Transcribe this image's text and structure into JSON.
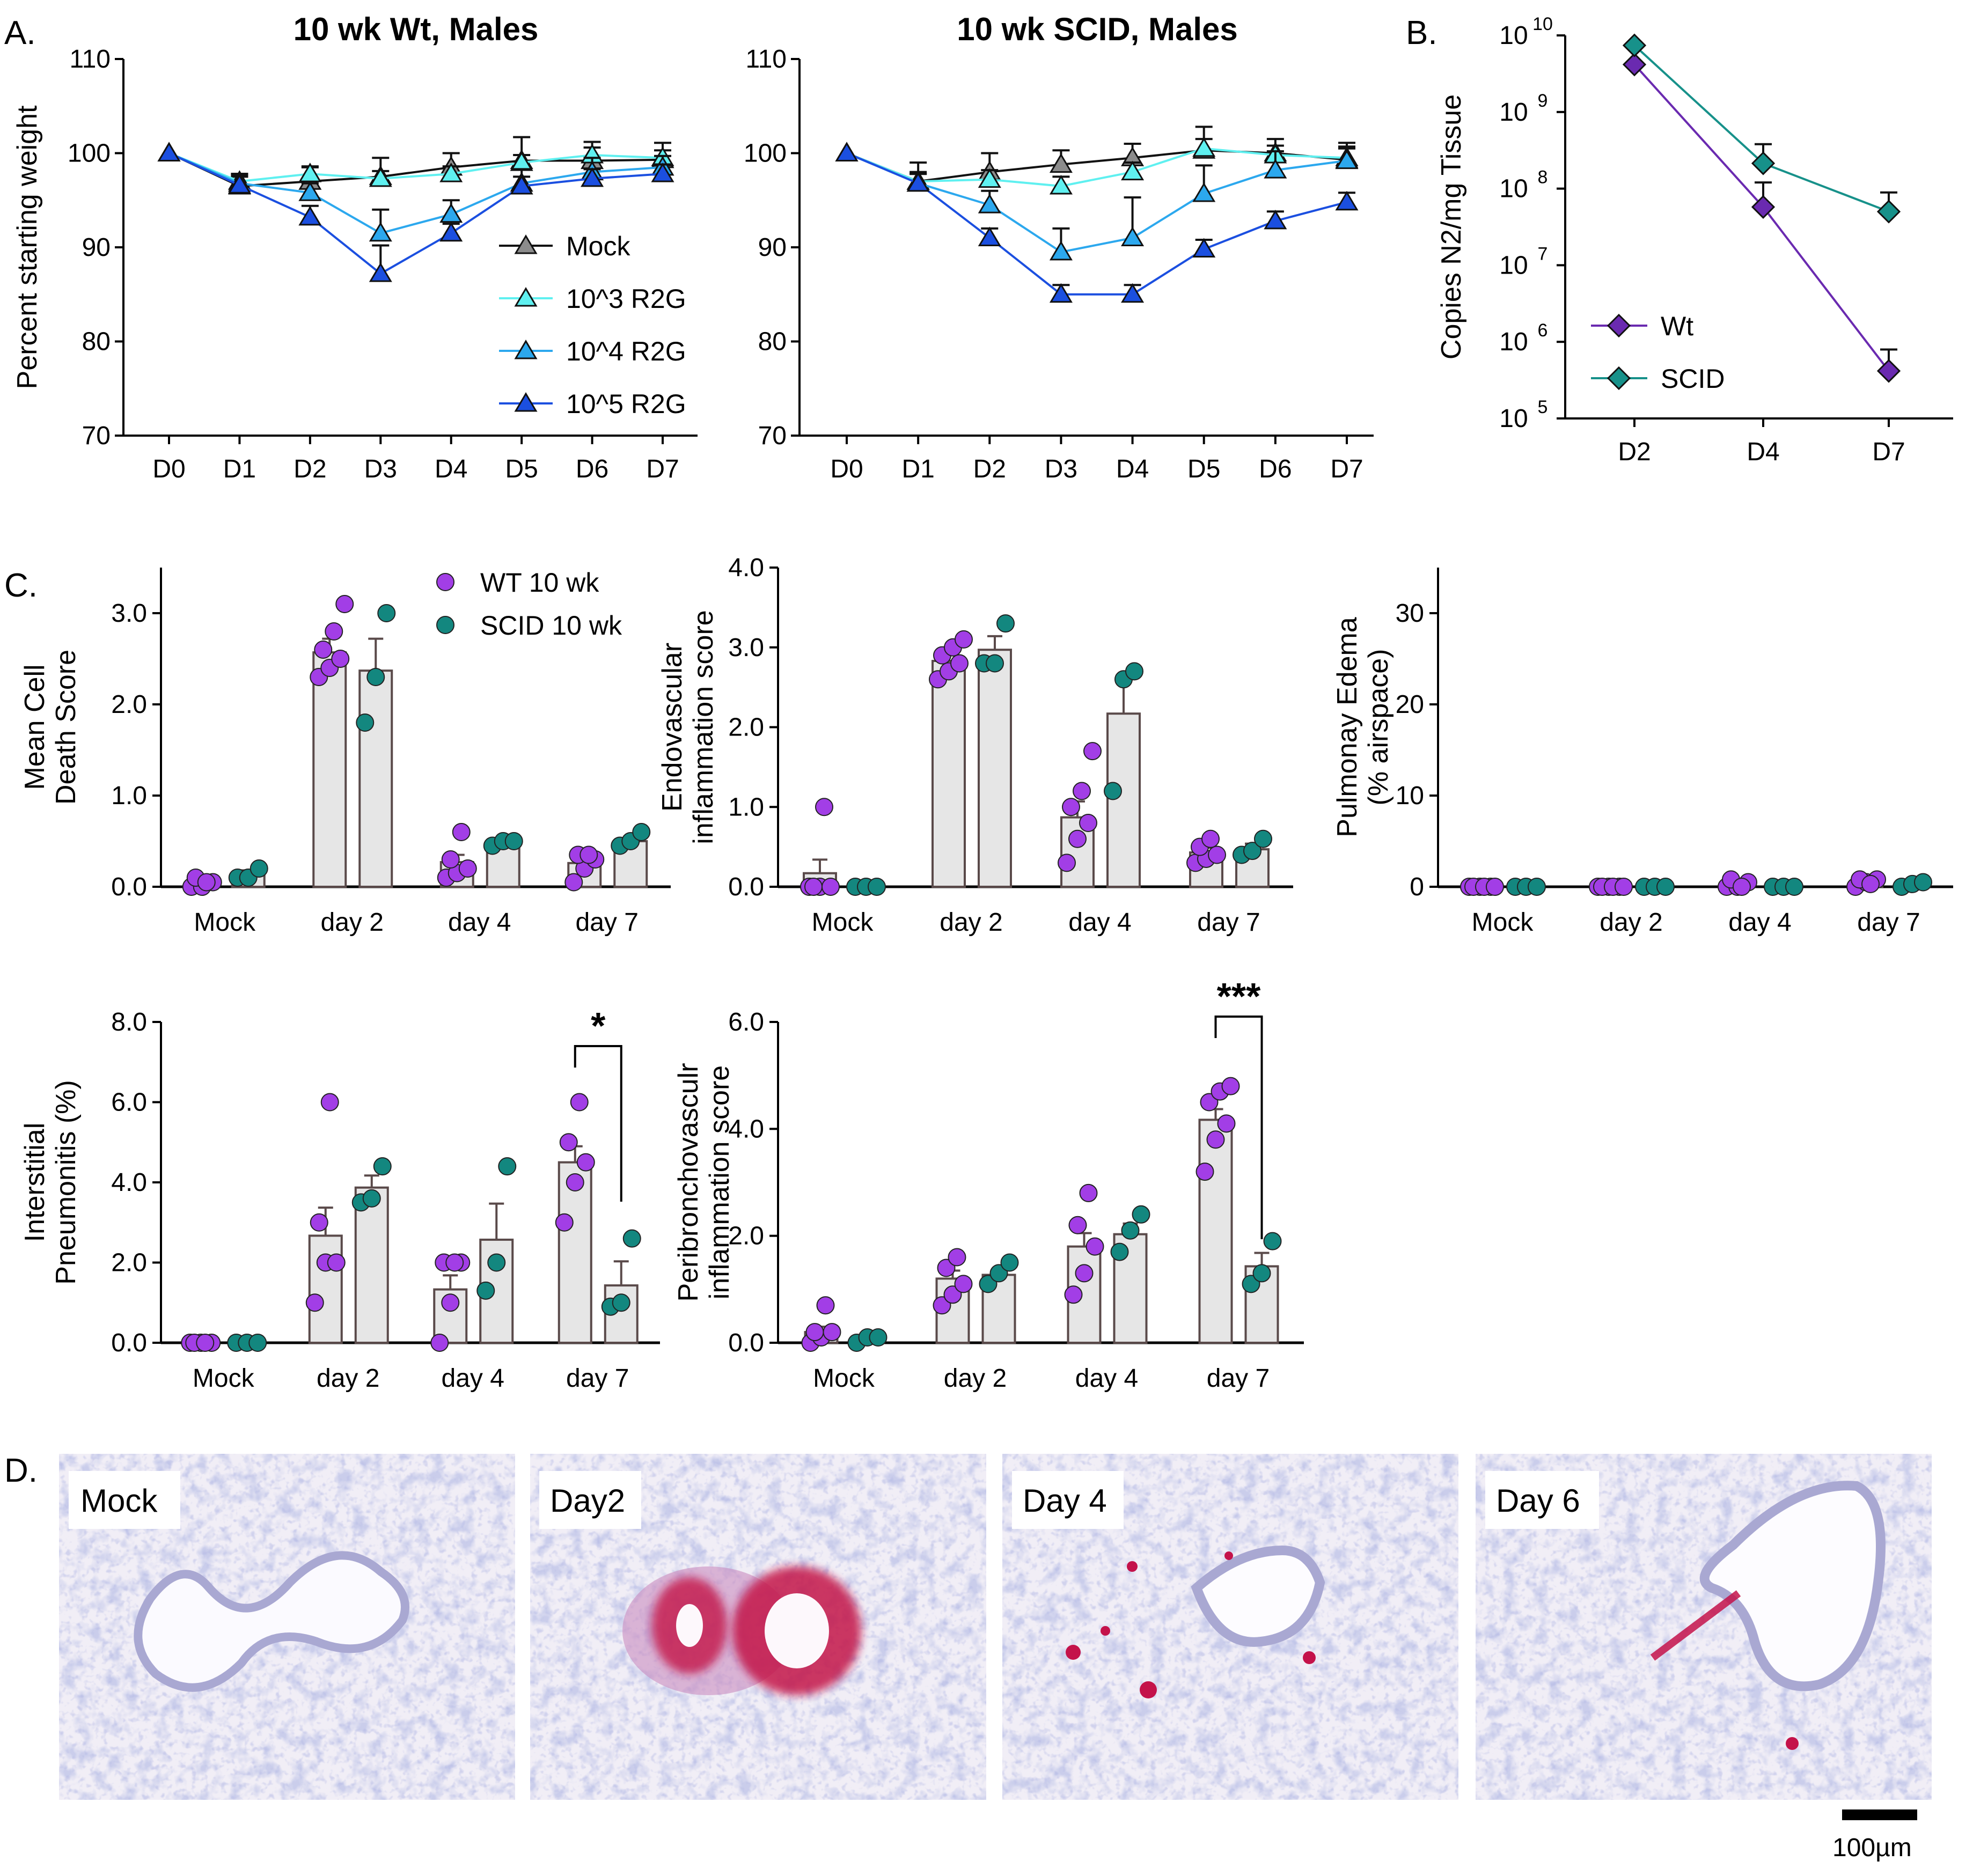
{
  "panel_letters": {
    "a": "A.",
    "b": "B.",
    "c": "C.",
    "d": "D."
  },
  "colors": {
    "mock": "#8c8c8c",
    "r2g_3": "#5ff0f0",
    "r2g_4": "#2ca8ee",
    "r2g_5": "#1b4fe0",
    "wt": "#6a2ab0",
    "scid": "#17918a",
    "wt_dot": "#a23ee6",
    "scid_dot": "#13877f",
    "bar_fill": "#e6e6e6",
    "bar_stroke": "#5a4a4a"
  },
  "chart_data": [
    {
      "id": "a1",
      "type": "line",
      "title": "10 wk Wt, Males",
      "ylabel": "Percent starting weight",
      "xlabel": "",
      "categories": [
        "D0",
        "D1",
        "D2",
        "D3",
        "D4",
        "D5",
        "D6",
        "D7"
      ],
      "ylim": [
        70,
        110
      ],
      "yticks": [
        "70",
        "80",
        "90",
        "100",
        "110"
      ],
      "legend": [
        "Mock",
        "10^3 R2G",
        "10^4 R2G",
        "10^5 R2G"
      ],
      "series": [
        {
          "name": "Mock",
          "values": [
            100,
            96.5,
            97,
            97.5,
            98.5,
            99.2,
            99.2,
            99.3
          ],
          "errors": [
            0,
            1,
            1.5,
            2,
            1.5,
            2.5,
            2,
            1.8
          ]
        },
        {
          "name": "10^3 R2G",
          "values": [
            100,
            97,
            97.8,
            97.3,
            97.8,
            99,
            99.8,
            99.5
          ],
          "errors": [
            0,
            0.8,
            0.8,
            0.8,
            0.8,
            0.8,
            0.8,
            0.8
          ]
        },
        {
          "name": "10^4 R2G",
          "values": [
            100,
            96.8,
            95.8,
            91.5,
            93.5,
            96.8,
            98,
            98.5
          ],
          "errors": [
            0,
            1,
            1,
            2.5,
            1.5,
            1.5,
            1.5,
            1.2
          ]
        },
        {
          "name": "10^5 R2G",
          "values": [
            100,
            96.6,
            93.2,
            87.2,
            91.5,
            96.5,
            97.3,
            97.8
          ],
          "errors": [
            0,
            1,
            1.2,
            3,
            1,
            1,
            1,
            1
          ]
        }
      ]
    },
    {
      "id": "a2",
      "type": "line",
      "title": "10 wk SCID, Males",
      "ylabel": "",
      "xlabel": "",
      "categories": [
        "D0",
        "D1",
        "D2",
        "D3",
        "D4",
        "D5",
        "D6",
        "D7"
      ],
      "ylim": [
        70,
        110
      ],
      "yticks": [
        "70",
        "80",
        "90",
        "100",
        "110"
      ],
      "series": [
        {
          "name": "Mock",
          "values": [
            100,
            97,
            98,
            98.8,
            99.5,
            100.3,
            100,
            99.3
          ],
          "errors": [
            0,
            2,
            2,
            1.5,
            1.5,
            2.5,
            1.5,
            1.8
          ]
        },
        {
          "name": "10^3 R2G",
          "values": [
            100,
            97,
            97.2,
            96.5,
            98,
            100.5,
            99.8,
            99.5
          ],
          "errors": [
            0,
            1,
            1,
            1,
            1,
            1,
            1,
            1
          ]
        },
        {
          "name": "10^4 R2G",
          "values": [
            100,
            96.8,
            94.5,
            89.5,
            91,
            95.7,
            98.2,
            99.2
          ],
          "errors": [
            0,
            1,
            1.5,
            2.5,
            4.3,
            3,
            2,
            1.5
          ]
        },
        {
          "name": "10^5 R2G",
          "values": [
            100,
            96.8,
            91,
            85,
            85,
            89.8,
            92.8,
            94.8
          ],
          "errors": [
            0,
            1,
            1,
            1,
            1,
            1,
            1,
            1
          ]
        }
      ]
    },
    {
      "id": "b",
      "type": "line",
      "title": "",
      "ylabel": "Copies N2/mg Tissue",
      "xlabel": "",
      "categories": [
        "D2",
        "D4",
        "D7"
      ],
      "yscale": "log",
      "ylim_exp": [
        5,
        10
      ],
      "ytick_exps": [
        "5",
        "6",
        "7",
        "8",
        "9",
        "10"
      ],
      "legend": [
        "Wt",
        "SCID"
      ],
      "series": [
        {
          "name": "Wt",
          "log10_values": [
            9.62,
            7.76,
            5.62
          ],
          "log10_error_tops": [
            9.62,
            8.08,
            5.9
          ]
        },
        {
          "name": "SCID",
          "log10_values": [
            9.87,
            8.33,
            7.7
          ],
          "log10_error_tops": [
            9.87,
            8.58,
            7.95
          ]
        }
      ]
    },
    {
      "id": "c1",
      "type": "bar",
      "ylabel": "Mean Cell Death Score",
      "categories": [
        "Mock",
        "day 2",
        "day 4",
        "day 7"
      ],
      "ylim": [
        0,
        3.5
      ],
      "yticks": [
        "0.0",
        "1.0",
        "2.0",
        "3.0"
      ],
      "legend": [
        "WT 10 wk",
        "SCID 10 wk"
      ],
      "series": [
        {
          "name": "WT 10 wk",
          "means": [
            0.04,
            2.57,
            0.27,
            0.26
          ],
          "sems": [
            0.02,
            0.15,
            0.08,
            0.06
          ],
          "points": [
            [
              0,
              0,
              0.05,
              0.1,
              0.05
            ],
            [
              2.3,
              2.4,
              2.5,
              2.6,
              2.8,
              3.1
            ],
            [
              0.1,
              0.15,
              0.2,
              0.3,
              0.6
            ],
            [
              0.05,
              0.2,
              0.3,
              0.35,
              0.35
            ]
          ]
        },
        {
          "name": "SCID 10 wk",
          "means": [
            0.13,
            2.37,
            0.47,
            0.5
          ],
          "sems": [
            0.05,
            0.35,
            0.03,
            0.05
          ],
          "points": [
            [
              0.1,
              0.1,
              0.2
            ],
            [
              1.8,
              2.3,
              3.0
            ],
            [
              0.45,
              0.5,
              0.5
            ],
            [
              0.45,
              0.5,
              0.6
            ]
          ]
        }
      ]
    },
    {
      "id": "c2",
      "type": "bar",
      "ylabel": "Endovascular inflammation score",
      "categories": [
        "Mock",
        "day 2",
        "day 4",
        "day 7"
      ],
      "ylim": [
        0,
        4
      ],
      "yticks": [
        "0.0",
        "1.0",
        "2.0",
        "3.0",
        "4.0"
      ],
      "series": [
        {
          "name": "WT 10 wk",
          "means": [
            0.17,
            2.83,
            0.87,
            0.43
          ],
          "sems": [
            0.17,
            0.1,
            0.2,
            0.06
          ],
          "points": [
            [
              0,
              0,
              0,
              0,
              1.0
            ],
            [
              2.6,
              2.7,
              2.8,
              2.9,
              3.0,
              3.1
            ],
            [
              0.3,
              0.6,
              0.8,
              1.0,
              1.2,
              1.7
            ],
            [
              0.3,
              0.35,
              0.4,
              0.5,
              0.6
            ]
          ]
        },
        {
          "name": "SCID 10 wk",
          "means": [
            0.0,
            2.97,
            2.17,
            0.47
          ],
          "sems": [
            0,
            0.17,
            0.45,
            0.07
          ],
          "points": [
            [
              0,
              0,
              0
            ],
            [
              2.8,
              2.8,
              3.3
            ],
            [
              1.2,
              2.6,
              2.7
            ],
            [
              0.4,
              0.45,
              0.6
            ]
          ]
        }
      ]
    },
    {
      "id": "c3",
      "type": "bar",
      "ylabel": "Pulmonay Edema (% airspace)",
      "categories": [
        "Mock",
        "day 2",
        "day 4",
        "day 7"
      ],
      "ylim": [
        0,
        35
      ],
      "yticks": [
        "0",
        "10",
        "20",
        "30"
      ],
      "series": [
        {
          "name": "WT 10 wk",
          "means": [
            0,
            0,
            0.1,
            0.2
          ],
          "sems": [
            0,
            0,
            0.1,
            0.1
          ],
          "points": [
            [
              0,
              0,
              0,
              0,
              0,
              0
            ],
            [
              0,
              0,
              0,
              0,
              0,
              0
            ],
            [
              0,
              0,
              0.5,
              0.8,
              0
            ],
            [
              0,
              0.5,
              0.8,
              0.8,
              0.3
            ]
          ]
        },
        {
          "name": "SCID 10 wk",
          "means": [
            0,
            0,
            0,
            0.2
          ],
          "sems": [
            0,
            0,
            0,
            0.1
          ],
          "points": [
            [
              0,
              0,
              0
            ],
            [
              0,
              0,
              0
            ],
            [
              0,
              0,
              0
            ],
            [
              0,
              0.3,
              0.5
            ]
          ]
        }
      ]
    },
    {
      "id": "c4",
      "type": "bar",
      "ylabel": "Interstitial Pneumonitis (%)",
      "categories": [
        "Mock",
        "day 2",
        "day 4",
        "day 7"
      ],
      "ylim": [
        0,
        8
      ],
      "yticks": [
        "0.0",
        "2.0",
        "4.0",
        "6.0",
        "8.0"
      ],
      "significance": {
        "category": "day 7",
        "label": "*"
      },
      "series": [
        {
          "name": "WT 10 wk",
          "means": [
            0,
            2.67,
            1.33,
            4.5
          ],
          "sems": [
            0,
            0.7,
            0.35,
            0.4
          ],
          "points": [
            [
              0,
              0,
              0,
              0,
              0
            ],
            [
              1.0,
              2.0,
              2.0,
              3.0,
              6.0
            ],
            [
              0,
              1.0,
              2.0,
              2.0,
              2.0
            ],
            [
              3.0,
              4.0,
              4.5,
              5.0,
              6.0
            ]
          ]
        },
        {
          "name": "SCID 10 wk",
          "means": [
            0,
            3.87,
            2.57,
            1.43
          ],
          "sems": [
            0,
            0.3,
            0.9,
            0.6
          ],
          "points": [
            [
              0,
              0,
              0
            ],
            [
              3.5,
              3.6,
              4.4
            ],
            [
              1.3,
              2.0,
              4.4
            ],
            [
              0.9,
              1.0,
              2.6
            ]
          ]
        }
      ]
    },
    {
      "id": "c5",
      "type": "bar",
      "ylabel": "Peribronchovasculr inflammation score",
      "categories": [
        "Mock",
        "day 2",
        "day 4",
        "day 7"
      ],
      "ylim": [
        0,
        6
      ],
      "yticks": [
        "0.0",
        "2.0",
        "4.0",
        "6.0"
      ],
      "significance": {
        "category": "day 7",
        "label": "***"
      },
      "series": [
        {
          "name": "WT 10 wk",
          "means": [
            0.2,
            1.2,
            1.8,
            4.17
          ],
          "sems": [
            0.1,
            0.15,
            0.25,
            0.2
          ],
          "points": [
            [
              0,
              0.1,
              0.2,
              0.2,
              0.7
            ],
            [
              0.7,
              0.9,
              1.1,
              1.4,
              1.6
            ],
            [
              0.9,
              1.3,
              1.8,
              2.2,
              2.8
            ],
            [
              3.2,
              3.8,
              4.1,
              4.5,
              4.7,
              4.8
            ]
          ]
        },
        {
          "name": "SCID 10 wk",
          "means": [
            0.07,
            1.27,
            2.03,
            1.43
          ],
          "sems": [
            0.03,
            0.1,
            0.2,
            0.25
          ],
          "points": [
            [
              0,
              0.1,
              0.1
            ],
            [
              1.1,
              1.3,
              1.5
            ],
            [
              1.7,
              2.1,
              2.4
            ],
            [
              1.1,
              1.3,
              1.9
            ]
          ]
        }
      ]
    }
  ],
  "micrographs": {
    "labels": [
      "Mock",
      "Day2",
      "Day 4",
      "Day 6"
    ],
    "scale_bar_label": "100µm"
  }
}
